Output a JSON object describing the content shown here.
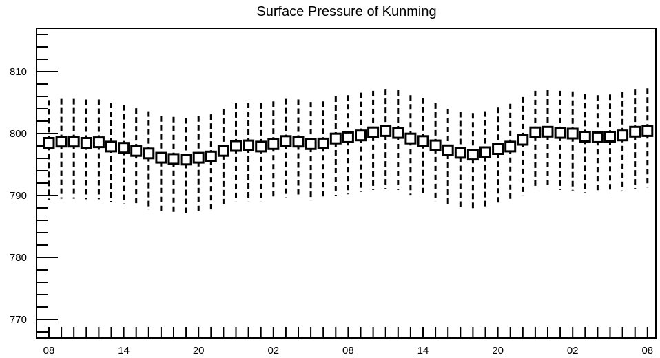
{
  "chart_data": {
    "type": "line",
    "title": "Surface Pressure of Kunming",
    "xlabel": "",
    "ylabel": "",
    "ylim": [
      767,
      817
    ],
    "grid": false,
    "x_tick_labels": [
      "08",
      "14",
      "20",
      "02",
      "08",
      "14",
      "20",
      "02",
      "08"
    ],
    "y_tick_labels": [
      "770",
      "780",
      "790",
      "800",
      "810"
    ],
    "y_tick_values": [
      770,
      780,
      790,
      800,
      810
    ],
    "marker": "open-square",
    "error_style": "dashed",
    "series": [
      {
        "values": [
          798.5,
          798.7,
          798.7,
          798.5,
          798.6,
          797.9,
          797.7,
          797.2,
          796.8,
          796.1,
          795.9,
          795.8,
          796.1,
          796.3,
          797.2,
          798.0,
          798.1,
          797.9,
          798.3,
          798.8,
          798.7,
          798.3,
          798.4,
          799.2,
          799.4,
          799.7,
          800.2,
          800.4,
          800.1,
          799.2,
          798.8,
          798.1,
          797.3,
          796.9,
          796.6,
          797.0,
          797.5,
          797.9,
          799.0,
          800.2,
          800.3,
          800.1,
          800.0,
          799.5,
          799.4,
          799.5,
          799.7,
          800.3,
          800.4
        ],
        "upper": [
          805.4,
          805.6,
          805.6,
          805.5,
          805.5,
          805.0,
          804.6,
          804.1,
          803.6,
          802.8,
          802.7,
          802.5,
          802.8,
          803.1,
          803.9,
          804.9,
          805.0,
          804.9,
          805.2,
          805.6,
          805.5,
          805.1,
          805.2,
          806.0,
          806.2,
          806.6,
          806.9,
          807.1,
          807.0,
          806.2,
          805.7,
          804.9,
          804.0,
          803.5,
          803.3,
          803.6,
          804.2,
          804.8,
          805.9,
          806.9,
          807.0,
          806.9,
          806.8,
          806.4,
          806.2,
          806.3,
          806.7,
          807.1,
          807.3
        ],
        "lower": [
          789.3,
          789.5,
          789.5,
          789.4,
          789.4,
          788.9,
          788.6,
          788.2,
          787.7,
          787.1,
          786.9,
          786.9,
          787.2,
          787.4,
          788.2,
          789.0,
          789.1,
          789.0,
          789.3,
          789.6,
          789.6,
          789.2,
          789.3,
          790.0,
          790.2,
          790.6,
          790.9,
          791.1,
          790.9,
          790.1,
          789.8,
          789.0,
          788.3,
          787.9,
          787.7,
          788.0,
          788.6,
          789.2,
          790.0,
          791.0,
          791.0,
          790.9,
          790.8,
          790.4,
          790.3,
          790.4,
          790.7,
          791.1,
          791.3
        ]
      }
    ]
  }
}
